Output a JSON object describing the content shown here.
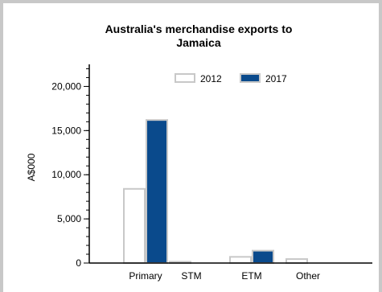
{
  "chart_data": {
    "type": "bar",
    "title_lines": [
      "Australia's merchandise exports to",
      "Jamaica"
    ],
    "ylabel": "A$000",
    "xlabel": "",
    "categories": [
      "Primary",
      "STM",
      "ETM",
      "Other"
    ],
    "series": [
      {
        "name": "2012",
        "values": [
          8400,
          150,
          700,
          450
        ],
        "fill": "#ffffff",
        "stroke": "#c8c8c8"
      },
      {
        "name": "2017",
        "values": [
          16200,
          0,
          1400,
          0
        ],
        "fill": "#0a4a8c",
        "stroke": "#c8c8c8"
      }
    ],
    "ylim": [
      0,
      22500
    ],
    "yticks": [
      0,
      5000,
      10000,
      15000,
      20000
    ],
    "ytick_labels": [
      "0",
      "5,000",
      "10,000",
      "15,000",
      "20,000"
    ],
    "minor_tick_step": 1000,
    "grid": false,
    "legend_position": "top-center"
  }
}
